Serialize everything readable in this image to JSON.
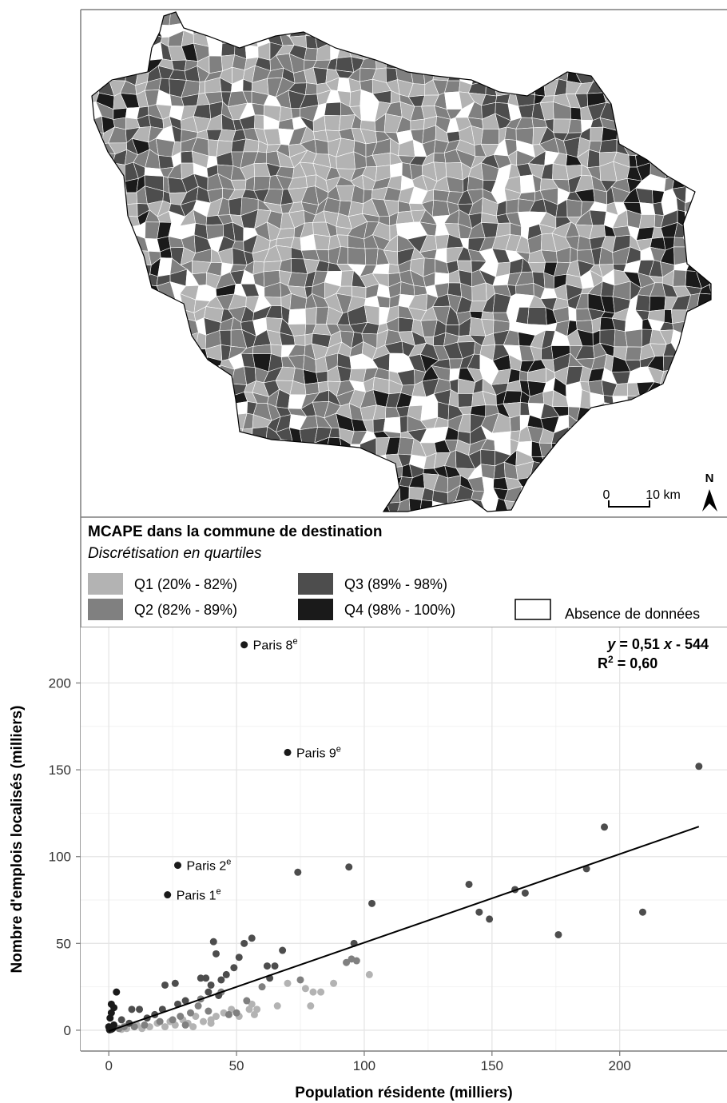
{
  "map": {
    "legend": {
      "title": "MCAPE dans la commune de destination",
      "subtitle": "Discrétisation en quartiles",
      "items": [
        {
          "label": "Q1 (20% - 82%)",
          "color": "#b3b3b3"
        },
        {
          "label": "Q2 (82% - 89%)",
          "color": "#808080"
        },
        {
          "label": "Q3 (89% - 98%)",
          "color": "#4d4d4d"
        },
        {
          "label": "Q4 (98% - 100%)",
          "color": "#1a1a1a"
        }
      ],
      "missing": {
        "label": "Absence de données",
        "color": "#ffffff"
      }
    },
    "scale_bar": [
      "0",
      "10 km"
    ],
    "north": "N"
  },
  "chart_data": {
    "type": "scatter",
    "xlabel": "Population résidente (milliers)",
    "ylabel": "Nombre d'emplois localisés (milliers)",
    "xlim": [
      -11,
      242
    ],
    "ylim": [
      -12,
      232
    ],
    "xticks": [
      0,
      50,
      100,
      150,
      200
    ],
    "yticks": [
      0,
      50,
      100,
      150,
      200
    ],
    "grid": true,
    "minor_grid": true,
    "series": [
      {
        "color": "#b3b3b3",
        "x": [
          102,
          88,
          80,
          83,
          79,
          77,
          70,
          66,
          56,
          55,
          57,
          51,
          48,
          45,
          42,
          40,
          37,
          34,
          31,
          29,
          26,
          24,
          22,
          19,
          16,
          13,
          11,
          7,
          5,
          33,
          40,
          58
        ],
        "y": [
          32,
          27,
          22,
          22,
          14,
          24,
          27,
          14,
          15,
          12,
          9,
          8,
          12,
          10,
          8,
          6,
          5,
          8,
          4,
          6,
          3,
          5,
          2,
          4,
          2,
          1,
          3,
          1,
          0.5,
          2,
          4,
          12
        ]
      },
      {
        "color": "#808080",
        "x": [
          97,
          95,
          93,
          75,
          60,
          54,
          50,
          47,
          35,
          32,
          28,
          25,
          20,
          14,
          10,
          6,
          4,
          36,
          44,
          39,
          30
        ],
        "y": [
          40,
          41,
          39,
          29,
          25,
          17,
          10,
          9,
          14,
          10,
          8,
          6,
          5,
          3,
          2,
          2,
          1,
          18,
          22,
          11,
          3
        ]
      },
      {
        "color": "#4d4d4d",
        "x": [
          231,
          194,
          187,
          209,
          176,
          163,
          159,
          141,
          145,
          149,
          103,
          94,
          74,
          96,
          68,
          56,
          53,
          51,
          49,
          46,
          42,
          41,
          62,
          65,
          63,
          44,
          38,
          36,
          40,
          39,
          43,
          26,
          22,
          27,
          30,
          12,
          9,
          15,
          5,
          8,
          18,
          21
        ],
        "y": [
          152,
          117,
          93,
          68,
          55,
          79,
          81,
          84,
          68,
          64,
          73,
          94,
          91,
          50,
          46,
          53,
          50,
          42,
          36,
          32,
          44,
          51,
          37,
          37,
          30,
          29,
          30,
          30,
          26,
          22,
          20,
          27,
          26,
          15,
          17,
          12,
          12,
          7,
          6,
          4,
          9,
          12
        ]
      },
      {
        "color": "#1a1a1a",
        "x": [
          3,
          1,
          2,
          1,
          0.5,
          0,
          1,
          2,
          0.3,
          1.5
        ],
        "y": [
          22,
          15,
          13,
          10,
          7,
          2,
          0.5,
          3,
          0.2,
          1
        ]
      },
      {
        "color": "#1a1a1a",
        "x": [
          53,
          70,
          27,
          23
        ],
        "y": [
          222,
          160,
          95,
          78
        ],
        "labels": [
          "Paris 8",
          "Paris 9",
          "Paris 2",
          "Paris 1"
        ],
        "label_sups": [
          "e",
          "e",
          "e",
          "e"
        ]
      }
    ],
    "regression": {
      "slope": 0.51,
      "intercept": -0.544,
      "x_range": [
        0,
        231
      ],
      "color": "#000000",
      "equation": [
        "y",
        " = 0,51 ",
        "x",
        " - 544"
      ],
      "r2": [
        "R",
        "2",
        " = 0,60"
      ]
    }
  }
}
